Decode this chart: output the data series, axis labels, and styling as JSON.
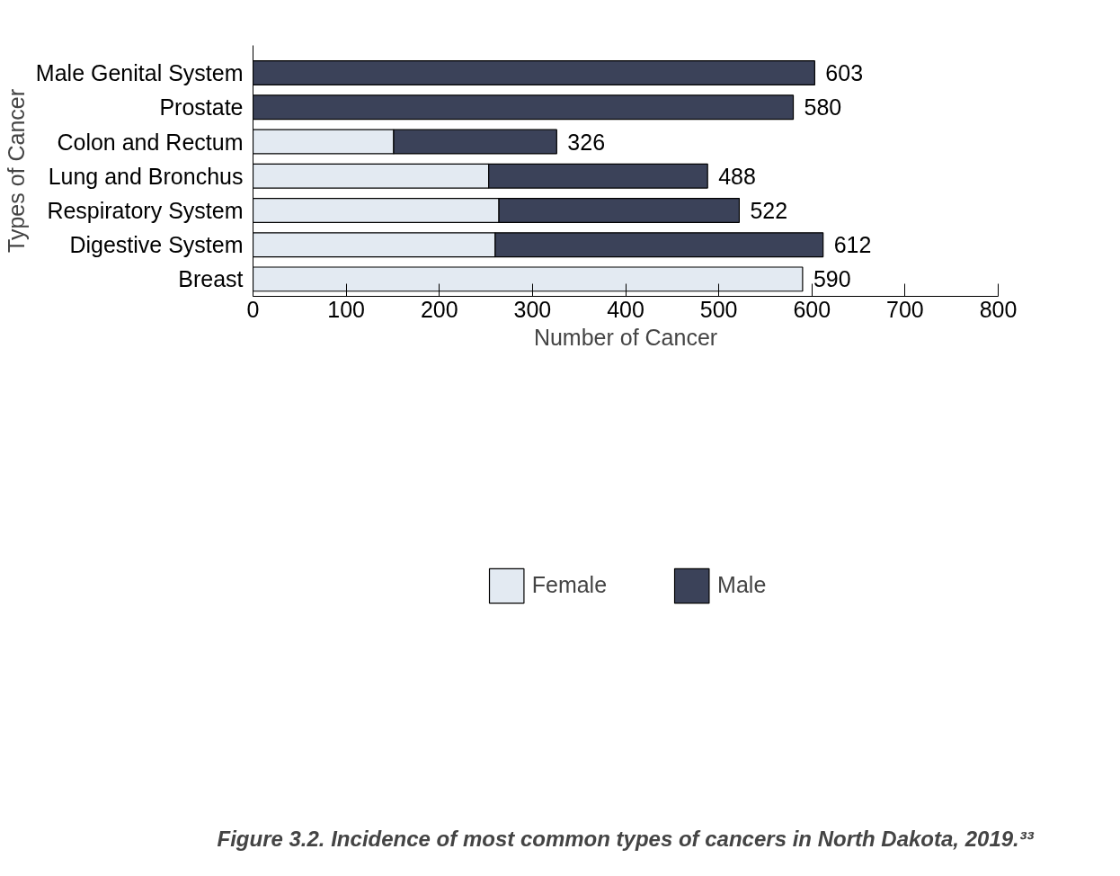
{
  "chart_data": {
    "type": "bar",
    "orientation": "horizontal",
    "stacked": true,
    "categories": [
      "Male Genital System",
      "Prostate",
      "Colon and Rectum",
      "Lung and Bronchus",
      "Respiratory System",
      "Digestive System",
      "Breast"
    ],
    "series": [
      {
        "name": "Female",
        "color": "#e3eaf2",
        "values": [
          null,
          null,
          151,
          253,
          264,
          260,
          590
        ]
      },
      {
        "name": "Male",
        "color": "#3b4259",
        "values": [
          603,
          580,
          175,
          235,
          258,
          352,
          null
        ]
      }
    ],
    "totals": [
      "603",
      "580",
      "326",
      "488",
      "522",
      "612",
      "590"
    ],
    "xlim": [
      0,
      800
    ],
    "xticks": [
      0,
      100,
      200,
      300,
      400,
      500,
      600,
      700,
      800
    ],
    "xlabel": "Number of Cancer",
    "ylabel": "Types of Cancer",
    "legend": "bottom",
    "grid": false,
    "annotations": [
      "Figure 3.2. Incidence of most common types of cancers in North Dakota, 2019.³³"
    ]
  }
}
